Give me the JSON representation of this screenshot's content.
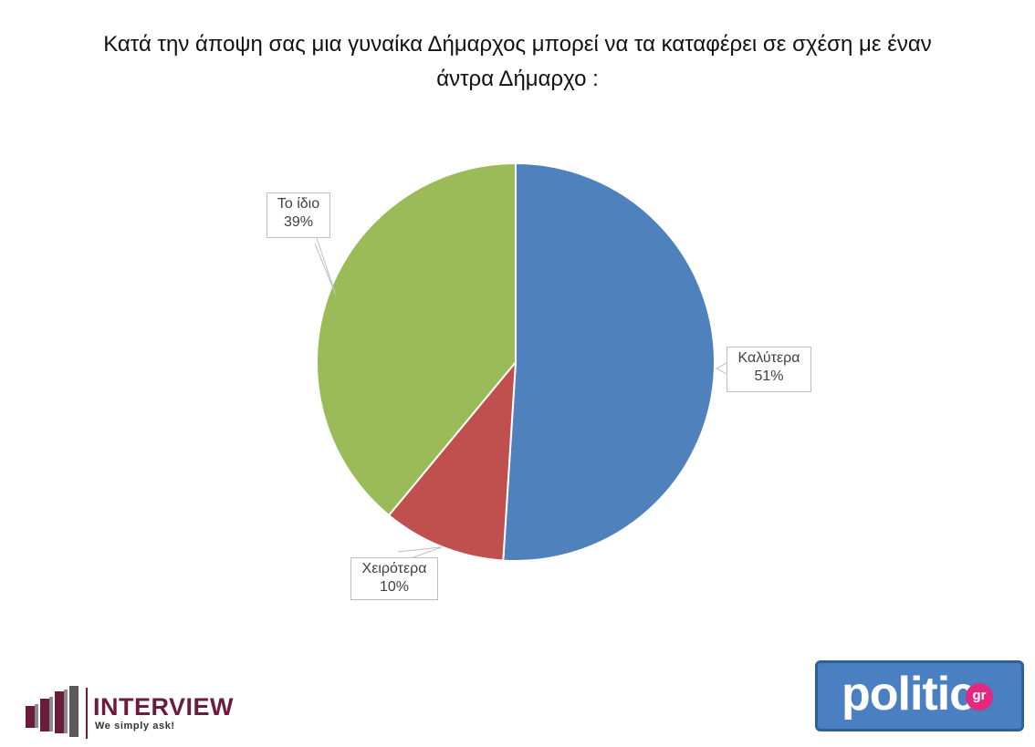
{
  "title": {
    "line1": "Κατά την άποψη σας μια γυναίκα Δήμαρχος μπορεί να τα καταφέρει σε σχέση με έναν",
    "line2": "άντρα Δήμαρχο :"
  },
  "chart_data": {
    "type": "pie",
    "title": "Κατά την άποψη σας μια γυναίκα Δήμαρχος μπορεί να τα καταφέρει σε σχέση με έναν άντρα Δήμαρχο :",
    "slices": [
      {
        "label": "Καλύτερα",
        "value": 51,
        "display": "51%",
        "color": "#4f81bd"
      },
      {
        "label": "Χειρότερα",
        "value": 10,
        "display": "10%",
        "color": "#c0504d"
      },
      {
        "label": "Το ίδιο",
        "value": 39,
        "display": "39%",
        "color": "#9bbb59"
      }
    ],
    "start_angle": "12 o'clock",
    "direction": "clockwise",
    "legend": "none (data callouts)"
  },
  "logos": {
    "interview": {
      "name": "INTERVIEW",
      "tagline": "We simply ask!",
      "color": "#6b1b3c"
    },
    "politic": {
      "name": "politic",
      "suffix": "gr",
      "background": "#4a7fc1",
      "badge_color": "#e2287f"
    }
  }
}
